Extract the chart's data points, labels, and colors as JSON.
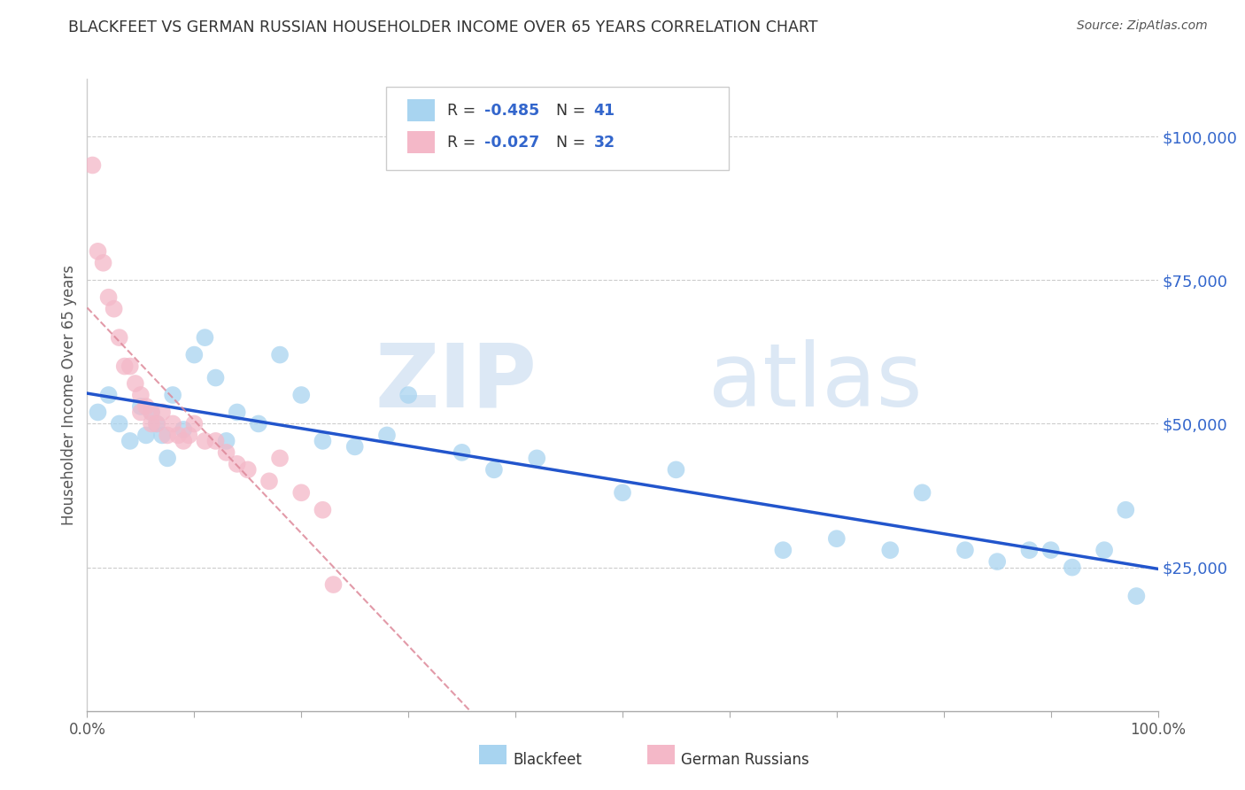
{
  "title": "BLACKFEET VS GERMAN RUSSIAN HOUSEHOLDER INCOME OVER 65 YEARS CORRELATION CHART",
  "source": "Source: ZipAtlas.com",
  "ylabel": "Householder Income Over 65 years",
  "ylabel_right_labels": [
    "$25,000",
    "$50,000",
    "$75,000",
    "$100,000"
  ],
  "ylabel_right_values": [
    25000,
    50000,
    75000,
    100000
  ],
  "blackfeet_color": "#a8d4f0",
  "german_color": "#f4b8c8",
  "blackfeet_line_color": "#2255cc",
  "german_line_color": "#dd8899",
  "blackfeet_x": [
    1.0,
    2.0,
    3.0,
    4.0,
    5.0,
    5.5,
    6.0,
    6.5,
    7.0,
    7.5,
    8.0,
    9.0,
    10.0,
    11.0,
    12.0,
    13.0,
    14.0,
    16.0,
    18.0,
    20.0,
    22.0,
    25.0,
    28.0,
    30.0,
    35.0,
    38.0,
    42.0,
    50.0,
    55.0,
    65.0,
    70.0,
    75.0,
    78.0,
    82.0,
    85.0,
    88.0,
    90.0,
    92.0,
    95.0,
    97.0,
    98.0
  ],
  "blackfeet_y": [
    52000,
    55000,
    50000,
    47000,
    53000,
    48000,
    52000,
    50000,
    48000,
    44000,
    55000,
    49000,
    62000,
    65000,
    58000,
    47000,
    52000,
    50000,
    62000,
    55000,
    47000,
    46000,
    48000,
    55000,
    45000,
    42000,
    44000,
    38000,
    42000,
    28000,
    30000,
    28000,
    38000,
    28000,
    26000,
    28000,
    28000,
    25000,
    28000,
    35000,
    20000
  ],
  "german_x": [
    0.5,
    1.0,
    1.5,
    2.0,
    2.5,
    3.0,
    3.5,
    4.0,
    4.5,
    5.0,
    5.0,
    5.5,
    6.0,
    6.0,
    6.5,
    7.0,
    7.5,
    8.0,
    8.5,
    9.0,
    9.5,
    10.0,
    11.0,
    12.0,
    13.0,
    14.0,
    15.0,
    17.0,
    18.0,
    20.0,
    22.0,
    23.0
  ],
  "german_y": [
    95000,
    80000,
    78000,
    72000,
    70000,
    65000,
    60000,
    60000,
    57000,
    55000,
    52000,
    53000,
    52000,
    50000,
    50000,
    52000,
    48000,
    50000,
    48000,
    47000,
    48000,
    50000,
    47000,
    47000,
    45000,
    43000,
    42000,
    40000,
    44000,
    38000,
    35000,
    22000
  ],
  "xlim": [
    0,
    100
  ],
  "ylim": [
    0,
    110000
  ],
  "figsize": [
    14.06,
    8.92
  ],
  "dpi": 100
}
